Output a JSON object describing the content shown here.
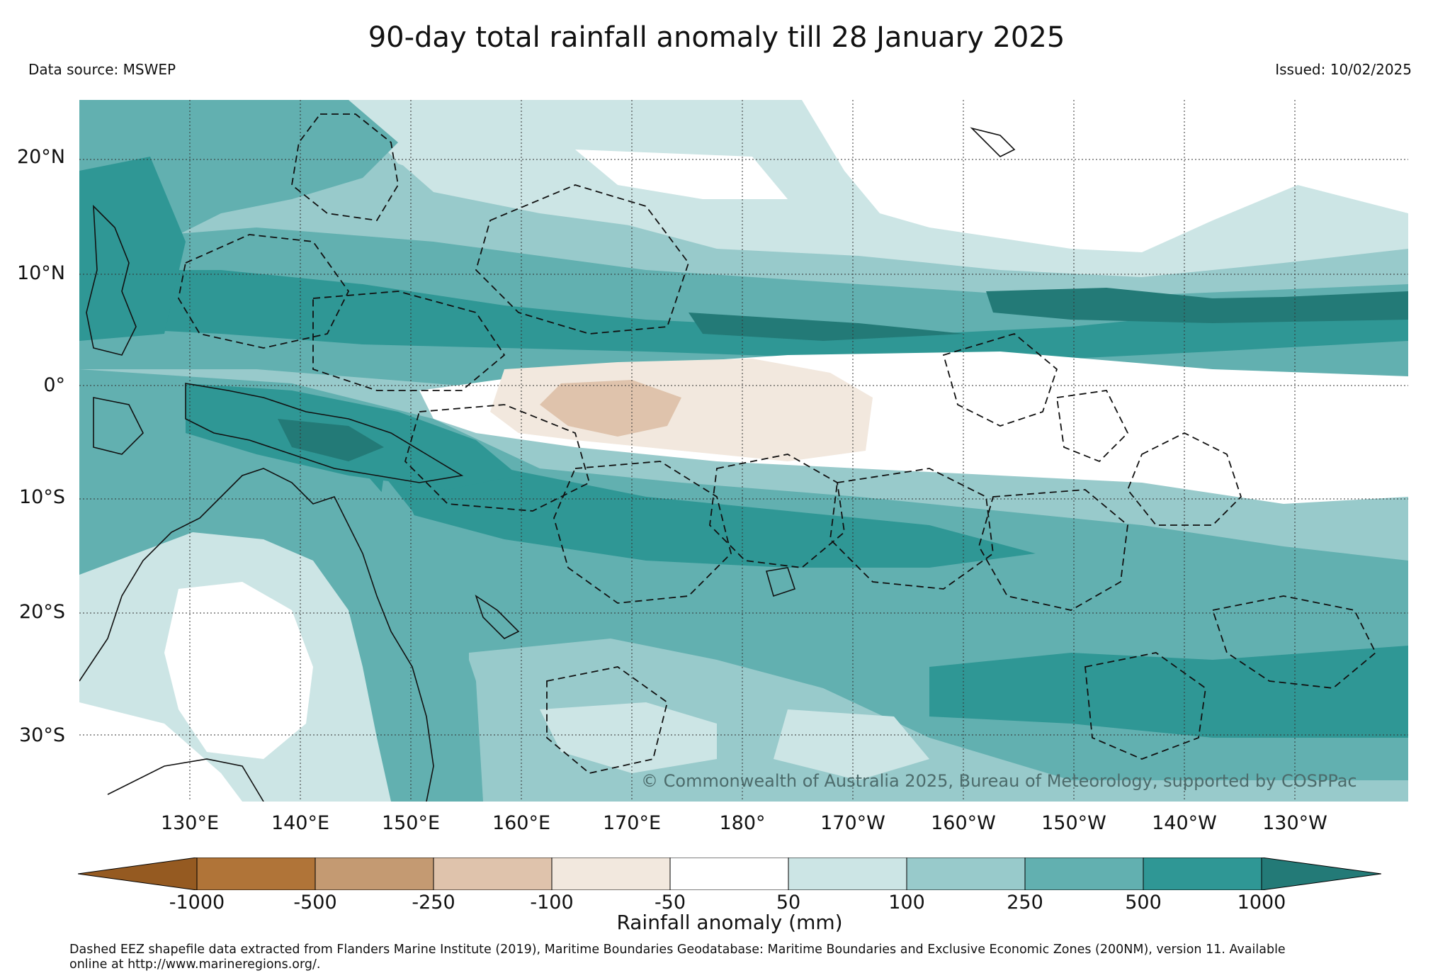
{
  "header": {
    "title": "90-day total rainfall anomaly till 28 January 2025",
    "data_source": "Data source: MSWEP",
    "issued": "Issued: 10/02/2025"
  },
  "map": {
    "lat_labels": [
      "20°N",
      "10°N",
      "0°",
      "10°S",
      "20°S",
      "30°S"
    ],
    "lon_labels": [
      "130°E",
      "140°E",
      "150°E",
      "160°E",
      "170°E",
      "180°",
      "170°W",
      "160°W",
      "150°W",
      "140°W",
      "130°W"
    ],
    "copyright": "© Commonwealth of Australia 2025, Bureau of Meteorology, supported by COSPPac"
  },
  "colorbar": {
    "ticks": [
      "-1000",
      "-500",
      "-250",
      "-100",
      "-50",
      "50",
      "100",
      "250",
      "500",
      "1000"
    ],
    "colors": [
      "#955a21",
      "#b07438",
      "#c49a72",
      "#dfc3ac",
      "#f2e8de",
      "#ffffff",
      "#cce5e5",
      "#98cacb",
      "#62b0b0",
      "#2f9795",
      "#237a77"
    ],
    "label": "Rainfall anomaly (mm)"
  },
  "footnote": {
    "line1": "Dashed EEZ shapefile data extracted from Flanders Marine Institute (2019), Maritime Boundaries Geodatabase: Maritime Boundaries and Exclusive Economic Zones (200NM), version 11. Available",
    "line2": "online at http://www.marineregions.org/."
  }
}
